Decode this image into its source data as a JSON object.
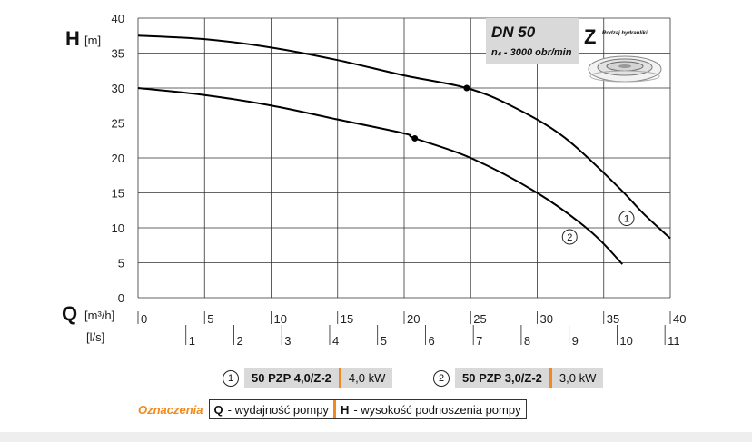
{
  "chart_data": {
    "type": "line",
    "title": "DN 50",
    "subtitle": "nₛ - 3000 obr/min",
    "badge_letter": "Z",
    "badge_caption": "Rodzaj hydrauliki",
    "y_axis": {
      "symbol": "H",
      "unit": "[m]",
      "range": [
        0,
        40
      ],
      "ticks": [
        0,
        5,
        10,
        15,
        20,
        25,
        30,
        35,
        40
      ]
    },
    "x_axis": {
      "symbol": "Q",
      "unit": "[m³/h]",
      "range": [
        0,
        40
      ],
      "ticks": [
        0,
        5,
        10,
        15,
        20,
        25,
        30,
        35,
        40
      ]
    },
    "x_axis_secondary": {
      "unit": "[l/s]",
      "ticks": [
        1,
        2,
        3,
        4,
        5,
        6,
        7,
        8,
        9,
        10,
        11
      ]
    },
    "grid": true,
    "series": [
      {
        "name": "1",
        "x": [
          0,
          5,
          10,
          15,
          20,
          24.7,
          28,
          32,
          36,
          38,
          40
        ],
        "y": [
          37.5,
          37.0,
          35.8,
          34.0,
          31.8,
          30.0,
          27.5,
          23.0,
          16.0,
          12.0,
          8.5
        ],
        "marker": {
          "x": 24.7,
          "y": 30.0
        }
      },
      {
        "name": "2",
        "x": [
          0,
          5,
          10,
          15,
          20,
          20.8,
          25,
          30,
          34,
          36.4
        ],
        "y": [
          30.0,
          29.0,
          27.5,
          25.5,
          23.5,
          22.8,
          20.0,
          15.0,
          9.5,
          4.8
        ],
        "marker": {
          "x": 20.8,
          "y": 22.8
        }
      }
    ]
  },
  "legend": [
    {
      "num": "1",
      "model": "50 PZP 4,0/Z-2",
      "power": "4,0 kW"
    },
    {
      "num": "2",
      "model": "50 PZP 3,0/Z-2",
      "power": "3,0 kW"
    }
  ],
  "notes": {
    "label": "Oznaczenia",
    "q_key": "Q",
    "q_text": "- wydajność pompy",
    "h_key": "H",
    "h_text": "- wysokość podnoszenia pompy"
  }
}
